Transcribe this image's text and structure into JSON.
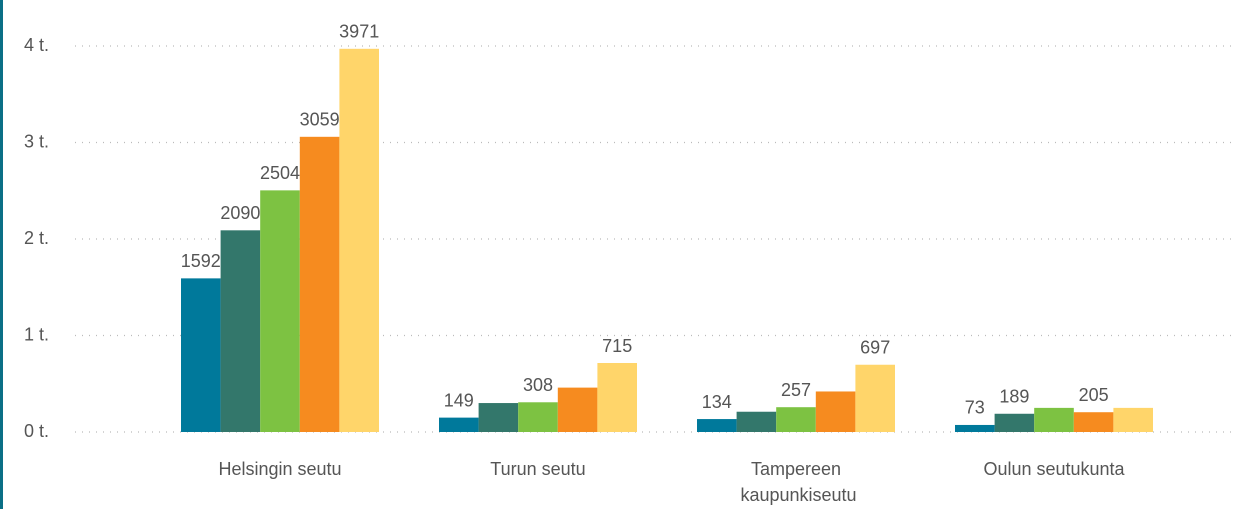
{
  "chart_data": {
    "type": "bar",
    "categories": [
      "Helsingin seutu",
      "Turun seutu",
      "Tampereen kaupunkiseutu",
      "Oulun seutukunta"
    ],
    "series": [
      {
        "color": "#00799b",
        "values": [
          1592,
          149,
          134,
          73
        ],
        "value_labels": [
          "1592",
          "149",
          "134",
          "73"
        ]
      },
      {
        "color": "#33776b",
        "values": [
          2090,
          300,
          210,
          189
        ],
        "value_labels": [
          "2090",
          null,
          null,
          "189"
        ]
      },
      {
        "color": "#7dc242",
        "values": [
          2504,
          308,
          257,
          250
        ],
        "value_labels": [
          "2504",
          "308",
          "257",
          null
        ]
      },
      {
        "color": "#f68b1f",
        "values": [
          3059,
          460,
          420,
          205
        ],
        "value_labels": [
          "3059",
          null,
          null,
          "205"
        ]
      },
      {
        "color": "#ffd56a",
        "values": [
          3971,
          715,
          697,
          250
        ],
        "value_labels": [
          "3971",
          "715",
          "697",
          null
        ]
      }
    ],
    "ylim": [
      0,
      4000
    ],
    "yticks": [
      {
        "value": 0,
        "label": "0 t."
      },
      {
        "value": 1000,
        "label": "1 t."
      },
      {
        "value": 2000,
        "label": "2 t."
      },
      {
        "value": 3000,
        "label": "3 t."
      },
      {
        "value": 4000,
        "label": "4 t."
      }
    ],
    "grid": true
  }
}
